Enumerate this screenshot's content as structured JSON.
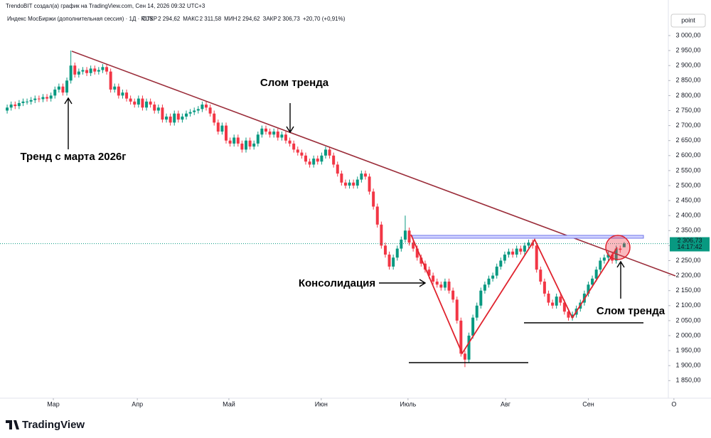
{
  "header": {
    "credit": "TrendoBIT создал(а) график на TradingView.com, Сен 14, 2026 09:32 UTC+3",
    "symbol": "Индекс МосБиржи (дополнительная сессия) · 1Д · RUS",
    "ohlc": [
      {
        "name": "ОТКР",
        "value": "2 294,62"
      },
      {
        "name": "МАКС",
        "value": "2 311,58"
      },
      {
        "name": "МИН",
        "value": "2 294,62"
      },
      {
        "name": "ЗАКР",
        "value": "2 306,73"
      }
    ],
    "change": "+20,70 (+0,91%)",
    "unit": "point"
  },
  "chart_data": {
    "type": "candlestick",
    "up_color": "#089981",
    "down_color": "#f23645",
    "open": [
      2750,
      2760,
      2770,
      2765,
      2775,
      2780,
      2780,
      2785,
      2790,
      2788,
      2795,
      2790,
      2800,
      2820,
      2830,
      2810,
      2850,
      2900,
      2870,
      2880,
      2885,
      2875,
      2890,
      2880,
      2885,
      2895,
      2880,
      2820,
      2830,
      2800,
      2810,
      2790,
      2780,
      2770,
      2790,
      2760,
      2780,
      2770,
      2750,
      2760,
      2720,
      2730,
      2710,
      2740,
      2720,
      2730,
      2740,
      2745,
      2750,
      2755,
      2770,
      2760,
      2740,
      2710,
      2680,
      2700,
      2650,
      2640,
      2660,
      2640,
      2620,
      2650,
      2630,
      2640,
      2670,
      2690,
      2680,
      2670,
      2680,
      2660,
      2670,
      2650,
      2640,
      2620,
      2610,
      2600,
      2580,
      2570,
      2590,
      2580,
      2600,
      2620,
      2600,
      2570,
      2540,
      2510,
      2500,
      2510,
      2500,
      2520,
      2540,
      2530,
      2480,
      2430,
      2370,
      2300,
      2270,
      2230,
      2260,
      2290,
      2320,
      2350,
      2310,
      2290,
      2260,
      2240,
      2220,
      2200,
      2180,
      2170,
      2160,
      2180,
      2150,
      2120,
      2050,
      1940,
      1920,
      2000,
      2060,
      2100,
      2150,
      2170,
      2190,
      2200,
      2230,
      2250,
      2270,
      2280,
      2270,
      2290,
      2280,
      2300,
      2310,
      2300,
      2220,
      2180,
      2140,
      2110,
      2100,
      2130,
      2110,
      2080,
      2060,
      2070,
      2090,
      2110,
      2140,
      2170,
      2190,
      2220,
      2250,
      2260,
      2270,
      2250,
      2290,
      2294.62
    ],
    "high": [
      2770,
      2780,
      2780,
      2785,
      2790,
      2790,
      2795,
      2800,
      2800,
      2805,
      2805,
      2810,
      2830,
      2840,
      2840,
      2860,
      2950,
      2910,
      2890,
      2895,
      2895,
      2900,
      2900,
      2895,
      2905,
      2905,
      2890,
      2840,
      2840,
      2820,
      2820,
      2800,
      2790,
      2800,
      2800,
      2790,
      2790,
      2780,
      2770,
      2770,
      2740,
      2740,
      2750,
      2750,
      2740,
      2750,
      2755,
      2760,
      2765,
      2780,
      2780,
      2770,
      2750,
      2720,
      2710,
      2710,
      2660,
      2670,
      2670,
      2650,
      2660,
      2660,
      2650,
      2680,
      2700,
      2700,
      2690,
      2690,
      2690,
      2680,
      2680,
      2660,
      2650,
      2630,
      2620,
      2610,
      2590,
      2600,
      2600,
      2610,
      2630,
      2630,
      2610,
      2580,
      2550,
      2520,
      2520,
      2520,
      2530,
      2550,
      2550,
      2540,
      2490,
      2440,
      2380,
      2310,
      2280,
      2270,
      2300,
      2330,
      2400,
      2360,
      2320,
      2300,
      2270,
      2250,
      2230,
      2210,
      2190,
      2180,
      2190,
      2190,
      2160,
      2130,
      2060,
      1950,
      2010,
      2070,
      2110,
      2160,
      2180,
      2200,
      2210,
      2240,
      2260,
      2280,
      2290,
      2290,
      2300,
      2300,
      2310,
      2320,
      2320,
      2310,
      2230,
      2190,
      2150,
      2120,
      2140,
      2140,
      2120,
      2090,
      2080,
      2100,
      2120,
      2150,
      2180,
      2200,
      2230,
      2260,
      2270,
      2280,
      2280,
      2300,
      2300,
      2311.58
    ],
    "low": [
      2740,
      2750,
      2755,
      2755,
      2765,
      2770,
      2770,
      2775,
      2778,
      2778,
      2780,
      2780,
      2790,
      2810,
      2800,
      2800,
      2840,
      2860,
      2860,
      2870,
      2865,
      2865,
      2870,
      2870,
      2875,
      2870,
      2810,
      2810,
      2790,
      2790,
      2780,
      2770,
      2760,
      2760,
      2750,
      2750,
      2760,
      2740,
      2740,
      2710,
      2710,
      2700,
      2700,
      2710,
      2710,
      2720,
      2730,
      2735,
      2740,
      2745,
      2750,
      2730,
      2700,
      2670,
      2670,
      2640,
      2630,
      2630,
      2630,
      2610,
      2610,
      2620,
      2620,
      2630,
      2660,
      2670,
      2660,
      2660,
      2650,
      2650,
      2640,
      2630,
      2610,
      2600,
      2590,
      2570,
      2560,
      2560,
      2570,
      2570,
      2590,
      2590,
      2560,
      2530,
      2500,
      2490,
      2490,
      2490,
      2490,
      2510,
      2520,
      2470,
      2420,
      2360,
      2290,
      2260,
      2220,
      2220,
      2250,
      2280,
      2310,
      2300,
      2280,
      2250,
      2230,
      2210,
      2190,
      2170,
      2160,
      2150,
      2150,
      2140,
      2110,
      2040,
      1930,
      1895,
      1910,
      1990,
      2050,
      2090,
      2140,
      2160,
      2180,
      2190,
      2220,
      2240,
      2260,
      2260,
      2260,
      2270,
      2270,
      2290,
      2290,
      2210,
      2170,
      2130,
      2100,
      2090,
      2090,
      2100,
      2070,
      2050,
      2050,
      2060,
      2080,
      2100,
      2130,
      2160,
      2180,
      2210,
      2240,
      2250,
      2240,
      2240,
      2276.03,
      2294.62
    ],
    "close": [
      2760,
      2770,
      2765,
      2775,
      2780,
      2780,
      2785,
      2790,
      2788,
      2795,
      2790,
      2800,
      2820,
      2830,
      2810,
      2850,
      2900,
      2870,
      2880,
      2885,
      2875,
      2890,
      2880,
      2885,
      2895,
      2880,
      2820,
      2830,
      2800,
      2810,
      2790,
      2780,
      2770,
      2790,
      2760,
      2780,
      2770,
      2750,
      2760,
      2720,
      2730,
      2710,
      2740,
      2720,
      2730,
      2740,
      2745,
      2750,
      2755,
      2770,
      2760,
      2740,
      2710,
      2680,
      2700,
      2650,
      2640,
      2660,
      2640,
      2620,
      2650,
      2630,
      2640,
      2670,
      2690,
      2680,
      2670,
      2680,
      2660,
      2670,
      2650,
      2640,
      2620,
      2610,
      2600,
      2580,
      2570,
      2590,
      2580,
      2600,
      2620,
      2600,
      2570,
      2540,
      2510,
      2500,
      2510,
      2500,
      2520,
      2540,
      2530,
      2480,
      2430,
      2370,
      2300,
      2270,
      2230,
      2260,
      2290,
      2320,
      2350,
      2310,
      2290,
      2260,
      2240,
      2220,
      2200,
      2180,
      2170,
      2160,
      2180,
      2150,
      2120,
      2050,
      1940,
      1920,
      2000,
      2060,
      2100,
      2150,
      2170,
      2190,
      2200,
      2230,
      2250,
      2270,
      2280,
      2270,
      2290,
      2280,
      2300,
      2310,
      2300,
      2220,
      2180,
      2140,
      2110,
      2100,
      2130,
      2110,
      2080,
      2060,
      2070,
      2090,
      2110,
      2140,
      2170,
      2190,
      2220,
      2250,
      2260,
      2270,
      2250,
      2290,
      2286.03,
      2306.73
    ],
    "last_price_label": "2 306,73",
    "countdown": "14:17:42",
    "xlim": [
      -1.8,
      166.1
    ],
    "xticks": [
      {
        "value": 11.6,
        "label": "Мар"
      },
      {
        "value": 32.7,
        "label": "Апр"
      },
      {
        "value": 55.7,
        "label": "Май"
      },
      {
        "value": 78.9,
        "label": "Июн"
      },
      {
        "value": 100.7,
        "label": "Июль"
      },
      {
        "value": 125.2,
        "label": "Авг"
      },
      {
        "value": 146,
        "label": "Сен"
      },
      {
        "value": 167.5,
        "label": "О"
      }
    ],
    "ylim": [
      1791.5,
      3099.5
    ],
    "yticks": [
      {
        "value": 1850,
        "label": "1 850,00"
      },
      {
        "value": 1900,
        "label": "1 900,00"
      },
      {
        "value": 1950,
        "label": "1 950,00"
      },
      {
        "value": 2000,
        "label": "2 000,00"
      },
      {
        "value": 2050,
        "label": "2 050,00"
      },
      {
        "value": 2100,
        "label": "2 100,00"
      },
      {
        "value": 2150,
        "label": "2 150,00"
      },
      {
        "value": 2200,
        "label": "2 200,00"
      },
      {
        "value": 2250,
        "label": "2 250,00"
      },
      {
        "value": 2300,
        "label": "2 300,00"
      },
      {
        "value": 2350,
        "label": "2 350,00"
      },
      {
        "value": 2400,
        "label": "2 400,00"
      },
      {
        "value": 2450,
        "label": "2 450,00"
      },
      {
        "value": 2500,
        "label": "2 500,00"
      },
      {
        "value": 2550,
        "label": "2 550,00"
      },
      {
        "value": 2600,
        "label": "2 600,00"
      },
      {
        "value": 2650,
        "label": "2 650,00"
      },
      {
        "value": 2700,
        "label": "2 700,00"
      },
      {
        "value": 2750,
        "label": "2 750,00"
      },
      {
        "value": 2800,
        "label": "2 800,00"
      },
      {
        "value": 2850,
        "label": "2 850,00"
      },
      {
        "value": 2900,
        "label": "2 900,00"
      },
      {
        "value": 2950,
        "label": "2 950,00"
      },
      {
        "value": 3000,
        "label": "3 000,00"
      }
    ],
    "grid": false,
    "annotations": [
      "Слом тренда",
      "Тренд с марта 2026г",
      "Консолидация",
      "Слом тренда"
    ]
  },
  "footer": {
    "brand": "TradingView"
  }
}
